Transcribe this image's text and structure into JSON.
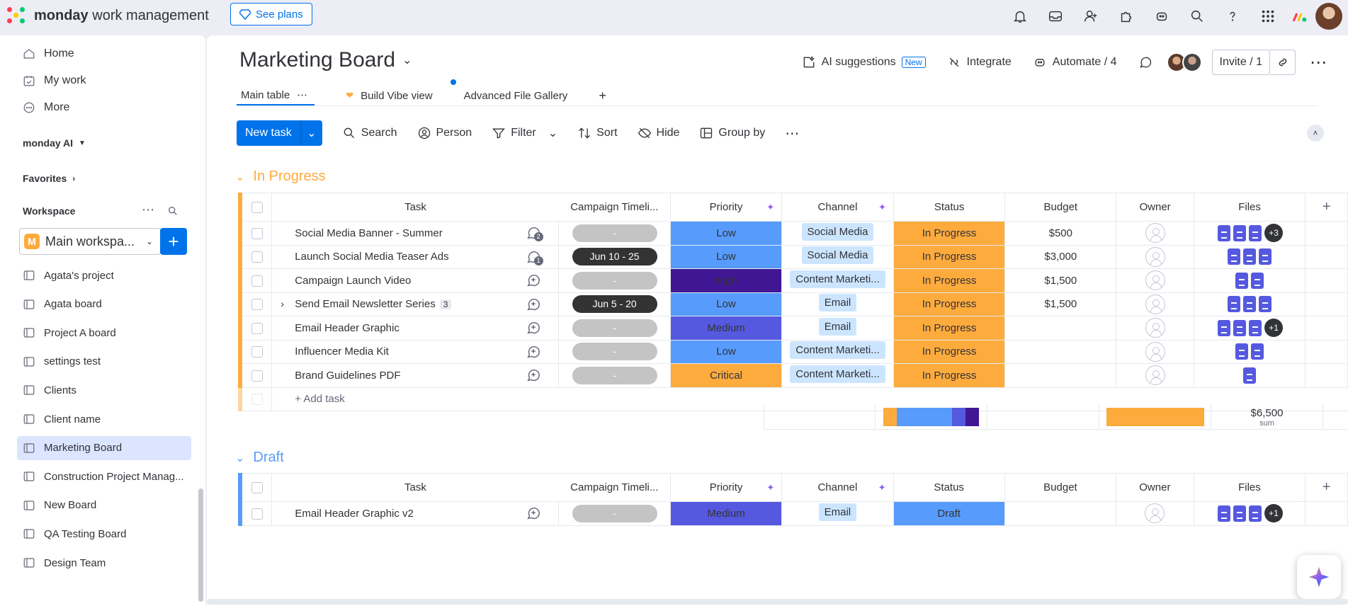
{
  "topbar": {
    "logo_brand": "monday",
    "logo_product": "work management",
    "see_plans": "See plans",
    "logo_colors": [
      "#ff3d57",
      "#ffcb00",
      "#00ca72"
    ]
  },
  "sidebar": {
    "nav": [
      {
        "label": "Home",
        "icon": "home-icon"
      },
      {
        "label": "My work",
        "icon": "calendar-check-icon"
      },
      {
        "label": "More",
        "icon": "more-circle-icon"
      }
    ],
    "ai_label": "monday AI",
    "favorites_label": "Favorites",
    "workspace_label": "Workspace",
    "workspace_badge": "M",
    "workspace_name": "Main workspa...",
    "boards": [
      "Agata's project",
      "Agata board",
      "Project A board",
      "settings test",
      "Clients",
      "Client name",
      "Marketing Board",
      "Construction Project Manag...",
      "New Board",
      "QA Testing Board",
      "Design Team"
    ],
    "active_board": "Marketing Board"
  },
  "board": {
    "title": "Marketing Board",
    "ai_suggestions": "AI suggestions",
    "new_badge": "New",
    "integrate": "Integrate",
    "automate": "Automate / 4",
    "invite": "Invite / 1",
    "tabs": [
      "Main table",
      "Build Vibe view",
      "Advanced File Gallery"
    ],
    "new_task": "New task",
    "tools": [
      "Search",
      "Person",
      "Filter",
      "Sort",
      "Hide",
      "Group by"
    ]
  },
  "columns": [
    "Task",
    "Campaign Timeli...",
    "Priority",
    "Channel",
    "Status",
    "Budget",
    "Owner",
    "Files"
  ],
  "colors": {
    "Low": "#579bfc",
    "High": "#401694",
    "Medium": "#5559df",
    "Critical": "#fdab3d",
    "In Progress": "#fdab3d",
    "Draft": "#579bfc"
  },
  "groups": [
    {
      "title": "In Progress",
      "color": "#fdab3d",
      "rows": [
        {
          "task": "Social Media Banner - Summer",
          "updates": "2",
          "timeline": "-",
          "priority": "Low",
          "channel": "Social Media",
          "status": "In Progress",
          "budget": "$500",
          "files": 3,
          "more": "+3"
        },
        {
          "task": "Launch Social Media Teaser Ads",
          "updates": "1",
          "timeline": "Jun 10 - 25",
          "priority": "Low",
          "channel": "Social Media",
          "status": "In Progress",
          "budget": "$3,000",
          "files": 3,
          "more": ""
        },
        {
          "task": "Campaign Launch Video",
          "updates": "",
          "timeline": "-",
          "priority": "High",
          "channel": "Content Marketi...",
          "status": "In Progress",
          "budget": "$1,500",
          "files": 2,
          "more": ""
        },
        {
          "task": "Send Email Newsletter Series",
          "subitems": "3",
          "updates": "",
          "timeline": "Jun 5 - 20",
          "priority": "Low",
          "channel": "Email",
          "status": "In Progress",
          "budget": "$1,500",
          "files": 3,
          "more": ""
        },
        {
          "task": "Email Header Graphic",
          "updates": "",
          "timeline": "-",
          "priority": "Medium",
          "channel": "Email",
          "status": "In Progress",
          "budget": "",
          "files": 3,
          "more": "+1"
        },
        {
          "task": "Influencer Media Kit",
          "updates": "",
          "timeline": "-",
          "priority": "Low",
          "channel": "Content Marketi...",
          "status": "In Progress",
          "budget": "",
          "files": 2,
          "more": ""
        },
        {
          "task": "Brand Guidelines PDF",
          "updates": "",
          "timeline": "-",
          "priority": "Critical",
          "channel": "Content Marketi...",
          "status": "In Progress",
          "budget": "",
          "files": 1,
          "more": ""
        }
      ],
      "add_task": "+ Add task",
      "budget_sum": "$6,500",
      "sum_label": "sum",
      "priority_mix": [
        {
          "label": "Critical",
          "share": 1
        },
        {
          "label": "Low",
          "share": 4
        },
        {
          "label": "Medium",
          "share": 1
        },
        {
          "label": "High",
          "share": 1
        }
      ]
    },
    {
      "title": "Draft",
      "color": "#579bfc",
      "rows": [
        {
          "task": "Email Header Graphic v2",
          "updates": "",
          "timeline": "-",
          "priority": "Medium",
          "channel": "Email",
          "status": "Draft",
          "budget": "",
          "files": 3,
          "more": "+1"
        }
      ]
    }
  ]
}
